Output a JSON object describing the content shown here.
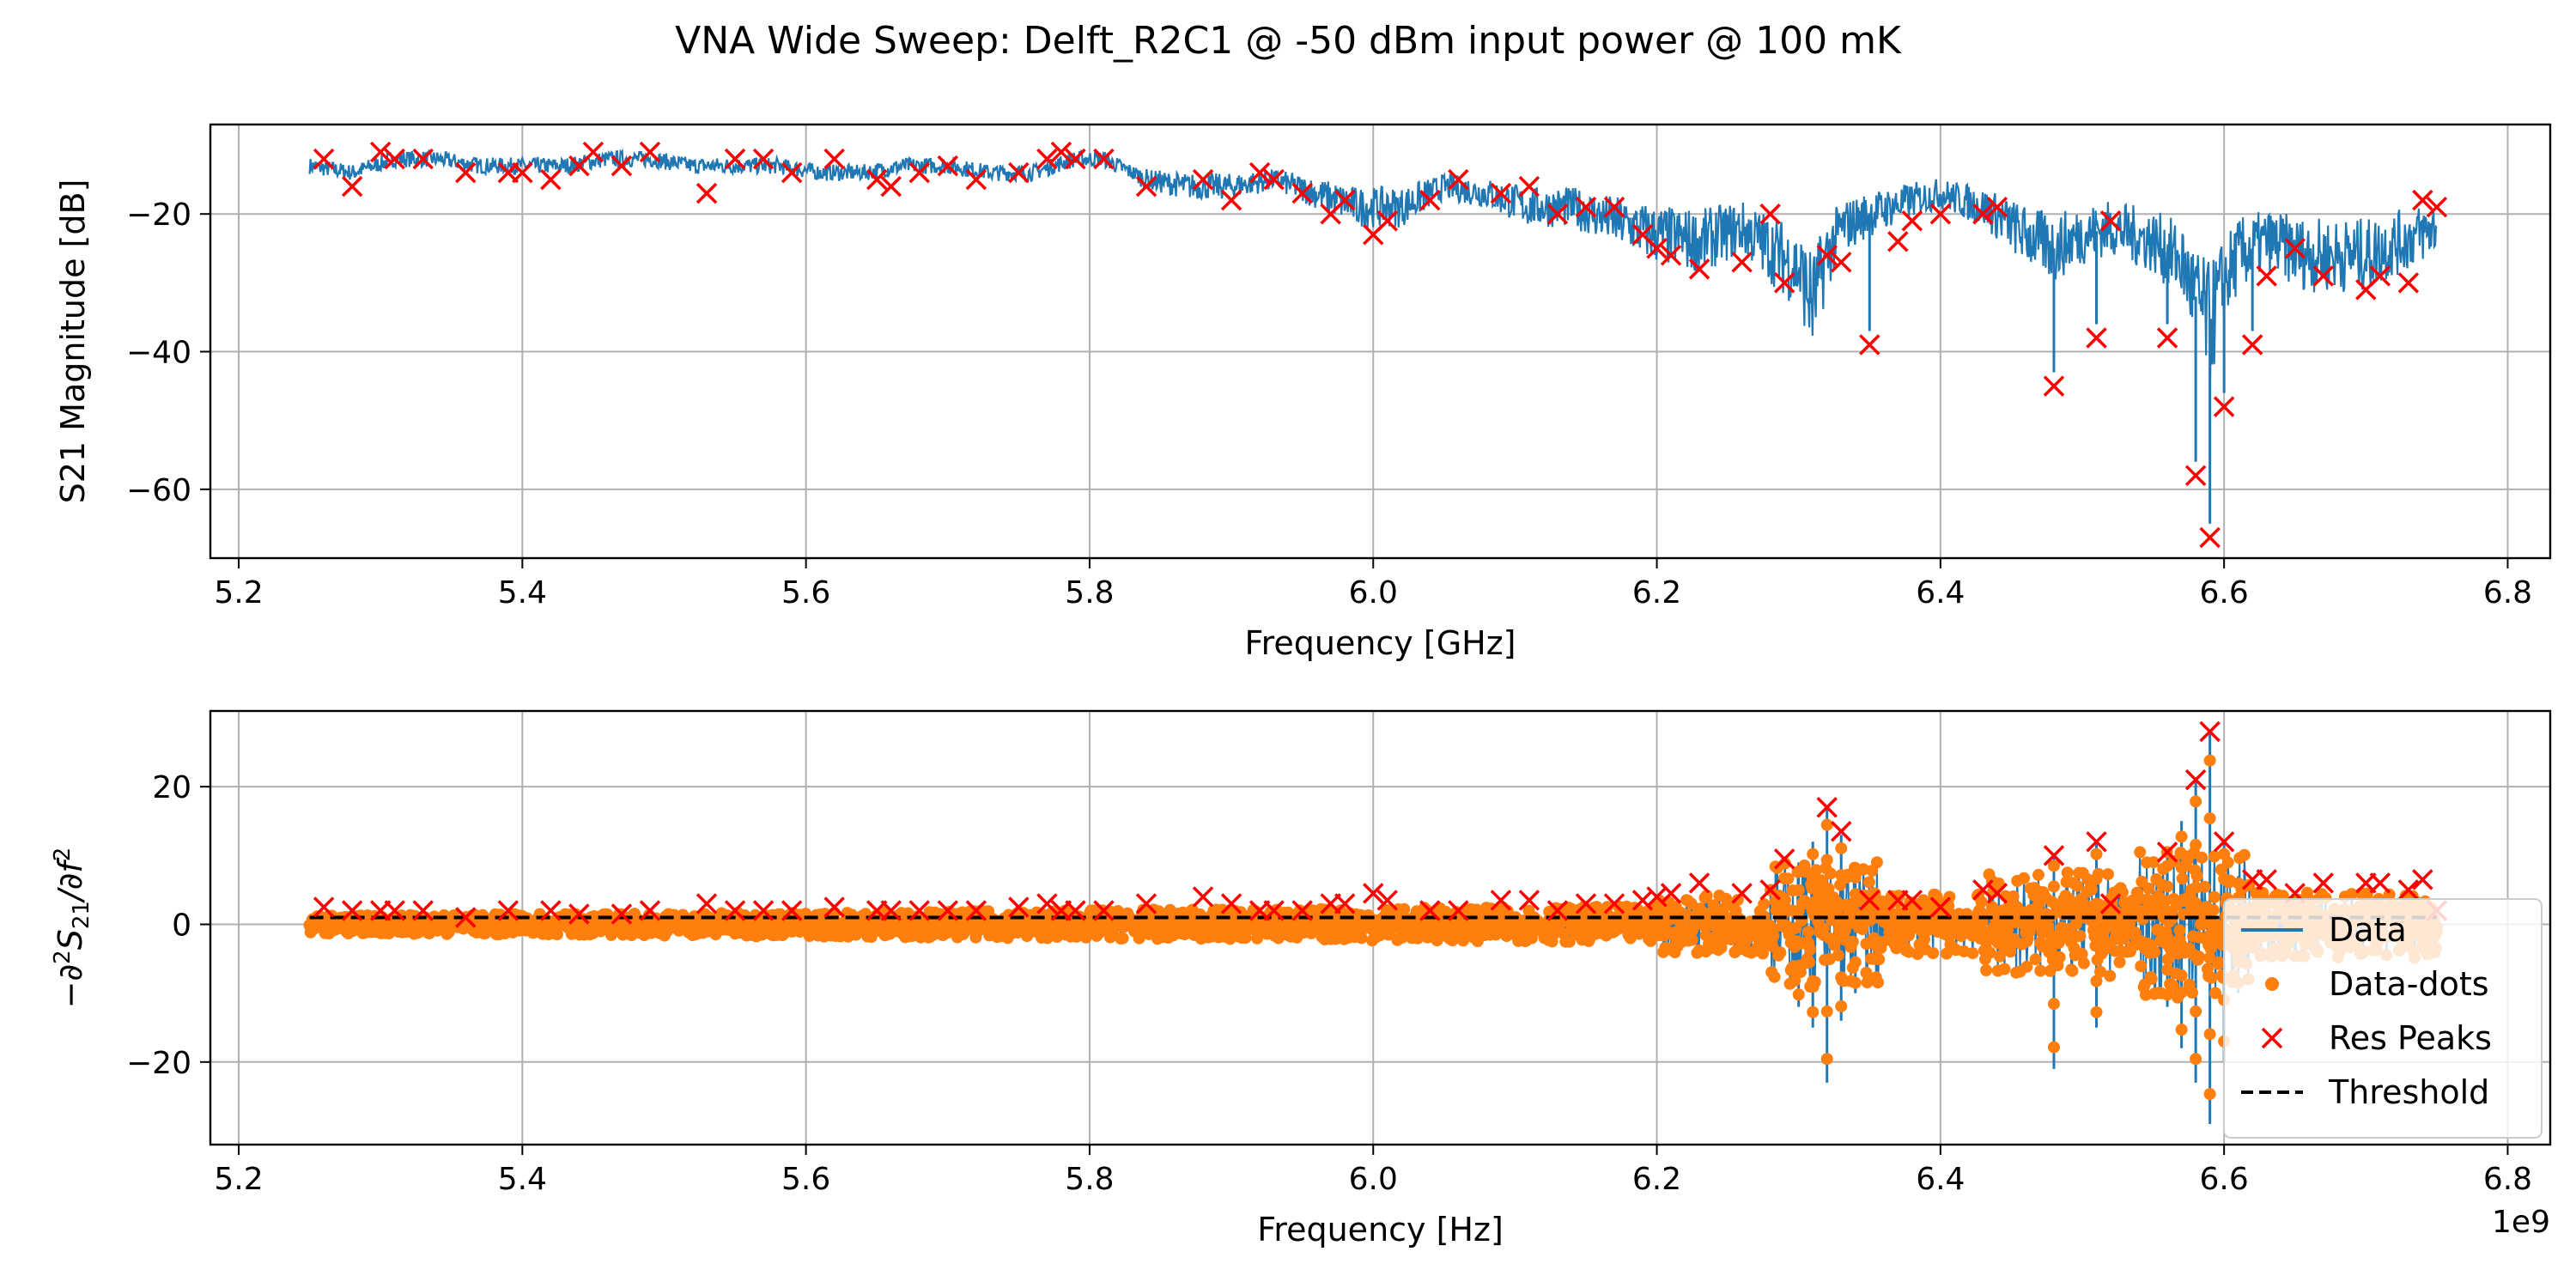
{
  "title": "VNA Wide Sweep: Delft_R2C1 @ -50 dBm input power @ 100 mK",
  "colors": {
    "data": "#1f77b4",
    "dots": "#ff7f0e",
    "peaks": "#ff0000",
    "threshold": "#000000",
    "grid": "#b0b0b0"
  },
  "chart_data": [
    {
      "type": "line",
      "xlabel": "Frequency [GHz]",
      "ylabel": "S21 Magnitude [dB]",
      "xlim": [
        5.18,
        6.83
      ],
      "ylim": [
        -70,
        -7
      ],
      "xticks": [
        5.2,
        5.4,
        5.6,
        5.8,
        6.0,
        6.2,
        6.4,
        6.6,
        6.8
      ],
      "xtick_labels": [
        "5.2",
        "5.4",
        "5.6",
        "5.8",
        "6.0",
        "6.2",
        "6.4",
        "6.6",
        "6.8"
      ],
      "yticks": [
        -60,
        -40,
        -20
      ],
      "ytick_labels": [
        "−60",
        "−40",
        "−20"
      ],
      "grid": true,
      "series": [
        {
          "kind": "line",
          "x": [
            5.25,
            5.28,
            5.31,
            5.34,
            5.37,
            5.4,
            5.43,
            5.46,
            5.49,
            5.52,
            5.55,
            5.58,
            5.61,
            5.64,
            5.67,
            5.7,
            5.73,
            5.76,
            5.79,
            5.81,
            5.84,
            5.87,
            5.9,
            5.93,
            5.96,
            5.99,
            6.02,
            6.05,
            6.08,
            6.11,
            6.14,
            6.17,
            6.2,
            6.23,
            6.26,
            6.28,
            6.3,
            6.31,
            6.32,
            6.33,
            6.35,
            6.38,
            6.4,
            6.43,
            6.46,
            6.48,
            6.5,
            6.52,
            6.55,
            6.57,
            6.58,
            6.59,
            6.6,
            6.61,
            6.63,
            6.66,
            6.7,
            6.75
          ],
          "y": [
            -13,
            -14,
            -12,
            -12,
            -13,
            -13,
            -13,
            -12,
            -12,
            -13,
            -13,
            -13,
            -14,
            -14,
            -13,
            -13,
            -14,
            -14,
            -12,
            -12,
            -15,
            -16,
            -16,
            -15,
            -17,
            -19,
            -19,
            -16,
            -17,
            -19,
            -19,
            -21,
            -23,
            -24,
            -22,
            -25,
            -28,
            -33,
            -26,
            -22,
            -20,
            -18,
            -17,
            -19,
            -23,
            -25,
            -23,
            -22,
            -24,
            -27,
            -32,
            -36,
            -30,
            -26,
            -24,
            -26,
            -26,
            -22
          ]
        },
        {
          "kind": "peaks",
          "x": [
            5.26,
            5.28,
            5.3,
            5.31,
            5.33,
            5.36,
            5.39,
            5.4,
            5.42,
            5.44,
            5.45,
            5.47,
            5.49,
            5.53,
            5.55,
            5.57,
            5.59,
            5.62,
            5.65,
            5.66,
            5.68,
            5.7,
            5.72,
            5.75,
            5.77,
            5.78,
            5.79,
            5.81,
            5.84,
            5.88,
            5.9,
            5.92,
            5.93,
            5.95,
            5.97,
            5.98,
            6.0,
            6.01,
            6.04,
            6.06,
            6.09,
            6.11,
            6.13,
            6.15,
            6.17,
            6.19,
            6.2,
            6.21,
            6.23,
            6.26,
            6.28,
            6.29,
            6.32,
            6.33,
            6.35,
            6.37,
            6.38,
            6.4,
            6.43,
            6.44,
            6.48,
            6.51,
            6.52,
            6.56,
            6.58,
            6.59,
            6.6,
            6.62,
            6.63,
            6.65,
            6.67,
            6.7,
            6.71,
            6.73,
            6.74,
            6.75
          ],
          "y": [
            -12,
            -16,
            -11,
            -12,
            -12,
            -14,
            -14,
            -14,
            -15,
            -13,
            -11,
            -13,
            -11,
            -17,
            -12,
            -12,
            -14,
            -12,
            -15,
            -16,
            -14,
            -13,
            -15,
            -14,
            -12,
            -11,
            -12,
            -12,
            -16,
            -15,
            -18,
            -14,
            -15,
            -17,
            -20,
            -18,
            -23,
            -21,
            -18,
            -15,
            -17,
            -16,
            -20,
            -19,
            -19,
            -23,
            -25,
            -26,
            -28,
            -27,
            -20,
            -30,
            -26,
            -27,
            -39,
            -24,
            -21,
            -20,
            -20,
            -19,
            -45,
            -38,
            -21,
            -38,
            -58,
            -67,
            -48,
            -39,
            -29,
            -25,
            -29,
            -31,
            -29,
            -30,
            -18,
            -19
          ]
        }
      ]
    },
    {
      "type": "line",
      "xlabel": "Frequency [Hz]",
      "ylabel": "−∂²S21/∂f²",
      "offset_label": "1e9",
      "xlim": [
        5.18,
        6.83
      ],
      "ylim": [
        -32,
        31
      ],
      "xticks": [
        5.2,
        5.4,
        5.6,
        5.8,
        6.0,
        6.2,
        6.4,
        6.6,
        6.8
      ],
      "xtick_labels": [
        "5.2",
        "5.4",
        "5.6",
        "5.8",
        "6.0",
        "6.2",
        "6.4",
        "6.6",
        "6.8"
      ],
      "yticks": [
        -20,
        0,
        20
      ],
      "ytick_labels": [
        "−20",
        "0",
        "20"
      ],
      "grid": true,
      "legend_position": "lower-right",
      "legend": [
        "Data",
        "Data-dots",
        "Res Peaks",
        "Threshold"
      ],
      "threshold": 1,
      "spikes": [
        {
          "x": 6.3,
          "low": -12,
          "high": 9
        },
        {
          "x": 6.31,
          "low": -15,
          "high": 12
        },
        {
          "x": 6.32,
          "low": -23,
          "high": 17
        },
        {
          "x": 6.33,
          "low": -14,
          "high": 13
        },
        {
          "x": 6.34,
          "low": -10,
          "high": 8
        },
        {
          "x": 6.48,
          "low": -21,
          "high": 10
        },
        {
          "x": 6.51,
          "low": -15,
          "high": 12
        },
        {
          "x": 6.56,
          "low": -12,
          "high": 10
        },
        {
          "x": 6.57,
          "low": -18,
          "high": 15
        },
        {
          "x": 6.58,
          "low": -23,
          "high": 21
        },
        {
          "x": 6.59,
          "low": -29,
          "high": 28
        },
        {
          "x": 6.6,
          "low": -20,
          "high": 12
        },
        {
          "x": 6.61,
          "low": -10,
          "high": 7
        }
      ],
      "series": [
        {
          "kind": "peaks",
          "x": [
            5.26,
            5.28,
            5.3,
            5.31,
            5.33,
            5.36,
            5.39,
            5.42,
            5.44,
            5.47,
            5.49,
            5.53,
            5.55,
            5.57,
            5.59,
            5.62,
            5.65,
            5.66,
            5.68,
            5.7,
            5.72,
            5.75,
            5.77,
            5.78,
            5.79,
            5.81,
            5.84,
            5.88,
            5.9,
            5.92,
            5.93,
            5.95,
            5.97,
            5.98,
            6.0,
            6.01,
            6.04,
            6.06,
            6.09,
            6.11,
            6.13,
            6.15,
            6.17,
            6.19,
            6.2,
            6.21,
            6.23,
            6.26,
            6.28,
            6.29,
            6.32,
            6.33,
            6.35,
            6.37,
            6.38,
            6.4,
            6.43,
            6.44,
            6.48,
            6.51,
            6.52,
            6.56,
            6.58,
            6.59,
            6.6,
            6.62,
            6.63,
            6.65,
            6.67,
            6.7,
            6.71,
            6.73,
            6.74,
            6.75
          ],
          "y": [
            2.5,
            2,
            2,
            2,
            2,
            1,
            2,
            2,
            1.5,
            1.5,
            2,
            3,
            2,
            2,
            2,
            2.5,
            2,
            2,
            2,
            2,
            2,
            2.5,
            3,
            2,
            2,
            2,
            3,
            4,
            3,
            2,
            2,
            2,
            3,
            3,
            4.5,
            3.5,
            2,
            2,
            3.5,
            3.5,
            2,
            3,
            3,
            3.5,
            4,
            4.5,
            6,
            4.5,
            5,
            9.5,
            17,
            13.5,
            3.5,
            3.5,
            3.5,
            2.5,
            5,
            4.5,
            10,
            12,
            3,
            10.5,
            21,
            28,
            12,
            6.5,
            6.5,
            4.5,
            6,
            6,
            6,
            5,
            6.5,
            2
          ]
        }
      ]
    }
  ]
}
